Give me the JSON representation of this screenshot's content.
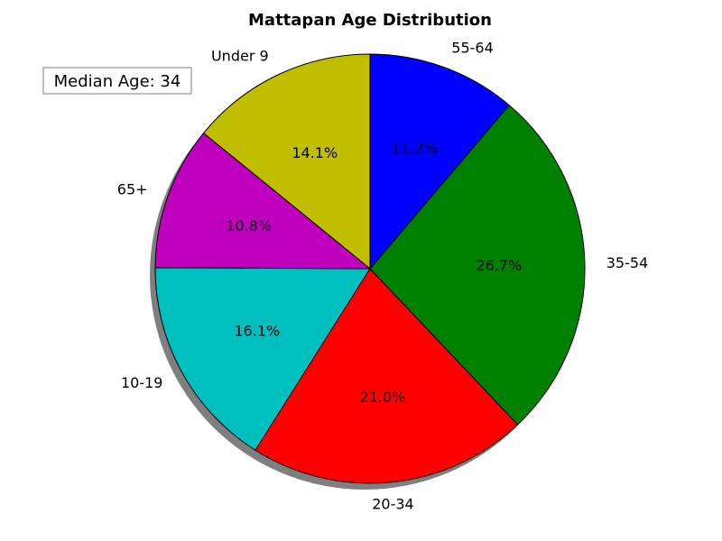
{
  "chart_data": {
    "type": "pie",
    "title": "Mattapan Age Distribution",
    "categories": [
      "Under 9",
      "65+",
      "10-19",
      "20-34",
      "35-54",
      "55-64"
    ],
    "values": [
      14.1,
      10.8,
      16.1,
      21.0,
      26.7,
      11.2
    ],
    "value_labels": [
      "14.1%",
      "10.8%",
      "16.1%",
      "21.0%",
      "26.7%",
      "11.2%"
    ],
    "colors": [
      "#bfbf00",
      "#bf00bf",
      "#00bfbf",
      "#ff0000",
      "#008000",
      "#0000ff"
    ],
    "shadow": true,
    "annotation": {
      "text": "Median Age: 34",
      "placement": "top-left"
    }
  }
}
